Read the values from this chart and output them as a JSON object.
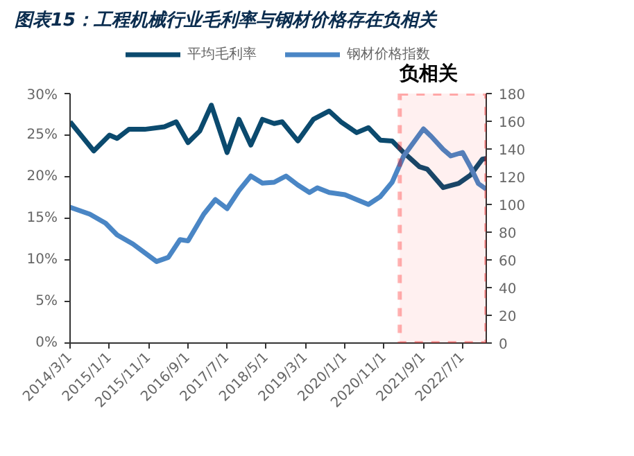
{
  "chart_data": {
    "type": "line",
    "title": "图表15：工程机械行业毛利率与钢材价格存在负相关",
    "series": [
      {
        "name": "平均毛利率",
        "color": "#0b4a6e",
        "x": [
          "2014-03",
          "2014-09",
          "2015-01",
          "2015-03",
          "2015-06",
          "2015-10",
          "2016-03",
          "2016-06",
          "2016-09",
          "2016-12",
          "2017-03",
          "2017-07",
          "2017-10",
          "2018-01",
          "2018-04",
          "2018-07",
          "2018-09",
          "2019-01",
          "2019-05",
          "2019-09",
          "2019-12",
          "2020-04",
          "2020-07",
          "2020-10",
          "2021-01",
          "2021-04",
          "2021-08",
          "2021-10",
          "2022-02",
          "2022-06",
          "2022-09",
          "2022-12",
          "2023-01"
        ],
        "values": [
          26.6,
          23.1,
          25.0,
          24.6,
          25.7,
          25.7,
          26.0,
          26.6,
          24.1,
          25.5,
          28.6,
          22.9,
          26.9,
          23.8,
          26.9,
          26.4,
          26.6,
          24.3,
          26.9,
          27.9,
          26.6,
          25.3,
          25.9,
          24.4,
          24.3,
          22.9,
          21.2,
          20.9,
          18.7,
          19.2,
          20.2,
          22.1,
          22.2
        ]
      },
      {
        "name": "钢材价格指数",
        "color": "#4a86c5",
        "axis": "y2",
        "x": [
          "2014-03",
          "2014-08",
          "2014-12",
          "2015-03",
          "2015-07",
          "2016-01",
          "2016-04",
          "2016-07",
          "2016-09",
          "2017-01",
          "2017-04",
          "2017-07",
          "2017-10",
          "2018-01",
          "2018-04",
          "2018-07",
          "2018-10",
          "2019-01",
          "2019-04",
          "2019-06",
          "2019-09",
          "2020-01",
          "2020-07",
          "2020-10",
          "2021-01",
          "2021-04",
          "2021-09",
          "2021-11",
          "2022-02",
          "2022-04",
          "2022-07",
          "2022-09",
          "2022-11",
          "2023-01"
        ],
        "values": [
          98,
          93,
          86.5,
          78,
          71.5,
          58.8,
          61.8,
          74.6,
          73.7,
          93,
          103.5,
          97,
          110,
          120.5,
          115.4,
          116,
          120.5,
          114,
          108.6,
          112,
          108.6,
          107,
          100,
          105.6,
          116,
          135,
          154.5,
          149,
          139.7,
          135,
          137.5,
          127,
          115,
          111
        ]
      }
    ],
    "xlim": [
      "2014-03-01",
      "2023-01-01"
    ],
    "xticks": [
      {
        "value": "2014-03-01",
        "label": "2014/3/1"
      },
      {
        "value": "2015-01-01",
        "label": "2015/1/1"
      },
      {
        "value": "2015-11-01",
        "label": "2015/11/1"
      },
      {
        "value": "2016-09-01",
        "label": "2016/9/1"
      },
      {
        "value": "2017-07-01",
        "label": "2017/7/1"
      },
      {
        "value": "2018-05-01",
        "label": "2018/5/1"
      },
      {
        "value": "2019-03-01",
        "label": "2019/3/1"
      },
      {
        "value": "2020-01-01",
        "label": "2020/1/1"
      },
      {
        "value": "2020-11-01",
        "label": "2020/11/1"
      },
      {
        "value": "2021-09-01",
        "label": "2021/9/1"
      },
      {
        "value": "2022-07-01",
        "label": "2022/7/1"
      }
    ],
    "ylim": [
      0,
      30
    ],
    "yticks": [
      {
        "value": 0,
        "label": "0%"
      },
      {
        "value": 5,
        "label": "5%"
      },
      {
        "value": 10,
        "label": "10%"
      },
      {
        "value": 15,
        "label": "15%"
      },
      {
        "value": 20,
        "label": "20%"
      },
      {
        "value": 25,
        "label": "25%"
      },
      {
        "value": 30,
        "label": "30%"
      }
    ],
    "y2lim": [
      0,
      180
    ],
    "y2ticks": [
      0,
      20,
      40,
      60,
      80,
      100,
      120,
      140,
      160,
      180
    ],
    "bands": [
      {
        "axis": "x",
        "from": "2021-03-01",
        "to": "2023-01-01",
        "label": "负相关",
        "color": "#ff0000"
      }
    ],
    "legend": "top",
    "grid": false,
    "marker": "none",
    "line_style": "solid"
  }
}
